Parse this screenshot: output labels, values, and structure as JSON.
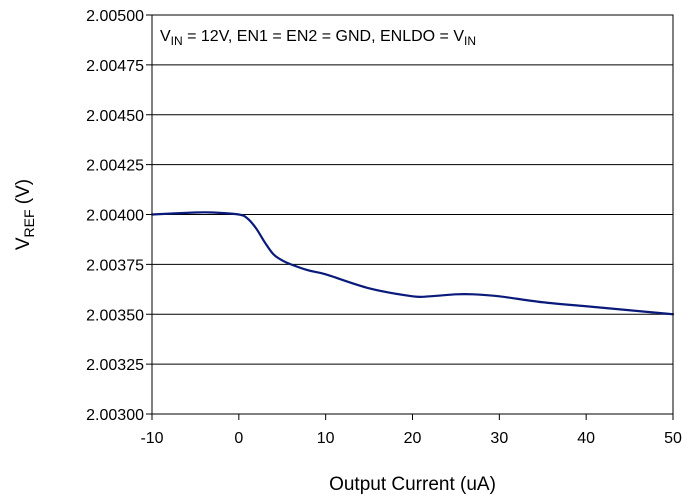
{
  "chart_data": {
    "type": "line",
    "xlabel": "Output Current (uA)",
    "ylabel": {
      "main": "V",
      "sub": "REF",
      "suffix": " (V)"
    },
    "annotation": [
      {
        "text": "V",
        "sub": false
      },
      {
        "text": "IN",
        "sub": true
      },
      {
        "text": " = 12V, EN1 = EN2 = GND, ENLDO = V",
        "sub": false
      },
      {
        "text": "IN",
        "sub": true
      }
    ],
    "xlim": [
      -10,
      50
    ],
    "ylim": [
      2.003,
      2.005
    ],
    "x_ticks": [
      -10,
      0,
      10,
      20,
      30,
      40,
      50
    ],
    "x_tick_labels": [
      "-10",
      "0",
      "10",
      "20",
      "30",
      "40",
      "50"
    ],
    "y_ticks": [
      2.003,
      2.00325,
      2.0035,
      2.00375,
      2.004,
      2.00425,
      2.0045,
      2.00475,
      2.005
    ],
    "y_tick_labels": [
      "2.00300",
      "2.00325",
      "2.00350",
      "2.00375",
      "2.00400",
      "2.00425",
      "2.00450",
      "2.00475",
      "2.00500"
    ],
    "grid": {
      "horizontal": true,
      "vertical": false
    },
    "series": [
      {
        "color": "#0a1a7a",
        "x": [
          -10,
          -5,
          -3,
          0,
          1,
          2,
          3,
          4,
          5,
          6,
          8,
          10,
          15,
          20,
          22,
          25,
          27,
          30,
          35,
          40,
          45,
          50
        ],
        "y": [
          2.004,
          2.00401,
          2.00401,
          2.004,
          2.00398,
          2.00393,
          2.00386,
          2.0038,
          2.00377,
          2.00375,
          2.00372,
          2.0037,
          2.00363,
          2.00359,
          2.00359,
          2.0036,
          2.0036,
          2.00359,
          2.00356,
          2.00354,
          2.00352,
          2.0035
        ]
      }
    ]
  }
}
